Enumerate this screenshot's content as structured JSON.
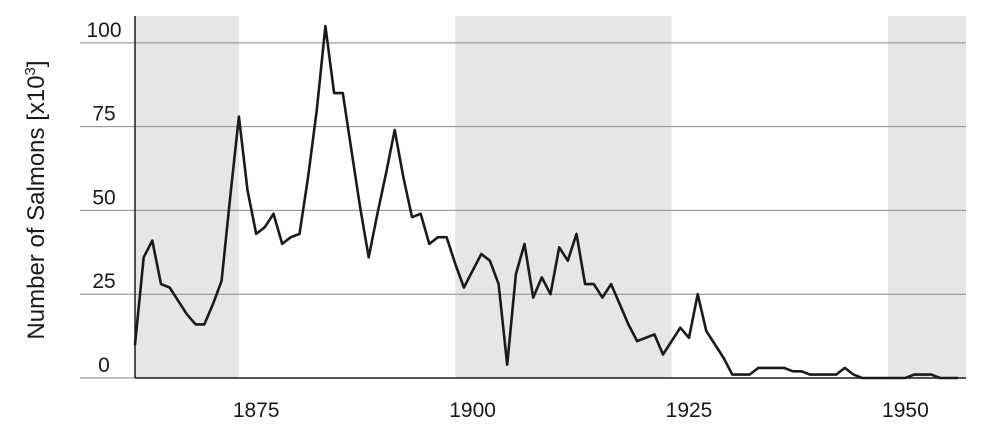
{
  "chart_data": {
    "type": "line",
    "title": "",
    "xlabel": "",
    "ylabel": "Number of Salmons [x10³]",
    "ylabel_main": "Number of Salmons [x10",
    "ylabel_sup": "3",
    "ylabel_end": "]",
    "xlim": [
      1861,
      1957
    ],
    "ylim": [
      0,
      108
    ],
    "x_ticks": [
      {
        "value": 1875,
        "label": "1875"
      },
      {
        "value": 1900,
        "label": "1900"
      },
      {
        "value": 1925,
        "label": "1925"
      },
      {
        "value": 1950,
        "label": "1950"
      }
    ],
    "y_ticks": [
      {
        "value": 0,
        "label": "0"
      },
      {
        "value": 25,
        "label": "25"
      },
      {
        "value": 50,
        "label": "50"
      },
      {
        "value": 75,
        "label": "75"
      },
      {
        "value": 100,
        "label": "100"
      }
    ],
    "grid": true,
    "shaded_bands": [
      [
        1861,
        1873
      ],
      [
        1898,
        1923
      ],
      [
        1948,
        1957
      ]
    ],
    "band_color": "#e6e6e8",
    "line_color": "#1a1a1a",
    "series": [
      {
        "x": [
          1861,
          1862,
          1863,
          1864,
          1865,
          1866,
          1867,
          1868,
          1869,
          1870,
          1871,
          1872,
          1873,
          1874,
          1875,
          1876,
          1877,
          1878,
          1879,
          1880,
          1881,
          1882,
          1883,
          1884,
          1885,
          1886,
          1887,
          1888,
          1889,
          1890,
          1891,
          1892,
          1893,
          1894,
          1895,
          1896,
          1897,
          1898,
          1899,
          1900,
          1901,
          1902,
          1903,
          1904,
          1905,
          1906,
          1907,
          1908,
          1909,
          1910,
          1911,
          1912,
          1913,
          1914,
          1915,
          1916,
          1917,
          1918,
          1919,
          1920,
          1921,
          1922,
          1923,
          1924,
          1925,
          1926,
          1927,
          1928,
          1929,
          1930,
          1931,
          1932,
          1933,
          1934,
          1935,
          1936,
          1937,
          1938,
          1939,
          1940,
          1941,
          1942,
          1943,
          1944,
          1945,
          1946,
          1947,
          1948,
          1949,
          1950,
          1951,
          1952,
          1953,
          1954,
          1955,
          1956
        ],
        "y": [
          10,
          36,
          41,
          28,
          27,
          23,
          19,
          16,
          16,
          22,
          29,
          54,
          78,
          56,
          43,
          45,
          49,
          40,
          42,
          43,
          60,
          80,
          105,
          85,
          85,
          68,
          51,
          36,
          49,
          61,
          74,
          60,
          48,
          49,
          40,
          42,
          42,
          34,
          27,
          32,
          37,
          35,
          28,
          4,
          31,
          40,
          24,
          30,
          25,
          39,
          35,
          43,
          28,
          28,
          24,
          28,
          22,
          16,
          11,
          12,
          13,
          7,
          11,
          15,
          12,
          25,
          14,
          10,
          6,
          1,
          1,
          1,
          3,
          3,
          3,
          3,
          2,
          2,
          1,
          1,
          1,
          1,
          3,
          1,
          0,
          0,
          0,
          0,
          0,
          0,
          1,
          1,
          1,
          0,
          0,
          0
        ]
      }
    ]
  }
}
